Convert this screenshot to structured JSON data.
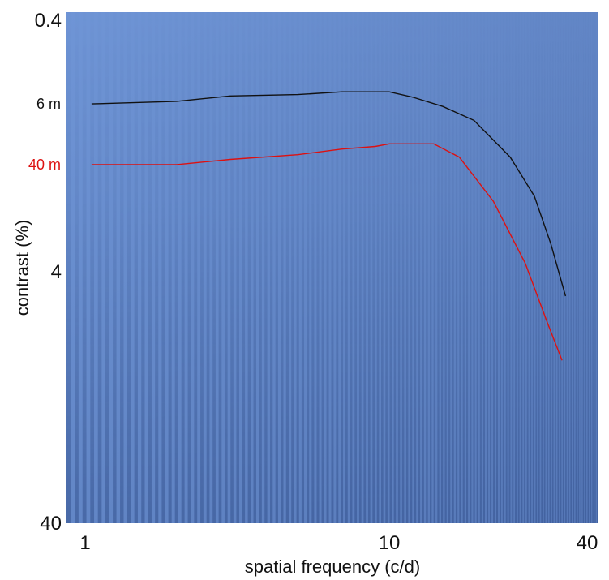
{
  "chart_data": {
    "type": "line",
    "title": "",
    "xlabel": "spatial frequency  (c/d)",
    "ylabel": "contrast (%)",
    "x_scale": "log",
    "y_scale": "log",
    "y_inverted": true,
    "xlim": [
      1,
      40
    ],
    "ylim": [
      0.4,
      60
    ],
    "x_ticks": [
      {
        "value": 1,
        "label": "1"
      },
      {
        "value": 10,
        "label": "10"
      },
      {
        "value": 40,
        "label": "40"
      }
    ],
    "y_ticks": [
      {
        "value": 0.4,
        "label": "0.4"
      },
      {
        "value": 4,
        "label": "4"
      },
      {
        "value": 40,
        "label": "40"
      }
    ],
    "background": "sinusoidal grating (Campbell-Robson chart)",
    "series": [
      {
        "name": "6 m",
        "color": "#111111",
        "label_color": "#111111",
        "points": [
          {
            "x": 1.05,
            "y": 0.86
          },
          {
            "x": 2.0,
            "y": 0.84
          },
          {
            "x": 3.0,
            "y": 0.8
          },
          {
            "x": 5.0,
            "y": 0.79
          },
          {
            "x": 7.0,
            "y": 0.77
          },
          {
            "x": 10.0,
            "y": 0.77
          },
          {
            "x": 12.0,
            "y": 0.81
          },
          {
            "x": 15.0,
            "y": 0.88
          },
          {
            "x": 19.0,
            "y": 1.0
          },
          {
            "x": 25.0,
            "y": 1.4
          },
          {
            "x": 30.0,
            "y": 2.0
          },
          {
            "x": 34.0,
            "y": 3.1
          },
          {
            "x": 38.0,
            "y": 5.0
          }
        ]
      },
      {
        "name": "40 m",
        "color": "#dd1111",
        "label_color": "#dd1111",
        "points": [
          {
            "x": 1.05,
            "y": 1.5
          },
          {
            "x": 2.0,
            "y": 1.5
          },
          {
            "x": 3.0,
            "y": 1.43
          },
          {
            "x": 5.0,
            "y": 1.37
          },
          {
            "x": 7.0,
            "y": 1.3
          },
          {
            "x": 9.0,
            "y": 1.27
          },
          {
            "x": 10.0,
            "y": 1.24
          },
          {
            "x": 14.0,
            "y": 1.24
          },
          {
            "x": 17.0,
            "y": 1.4
          },
          {
            "x": 22.0,
            "y": 2.1
          },
          {
            "x": 28.0,
            "y": 3.7
          },
          {
            "x": 33.0,
            "y": 6.3
          },
          {
            "x": 37.0,
            "y": 9.0
          }
        ]
      }
    ]
  }
}
